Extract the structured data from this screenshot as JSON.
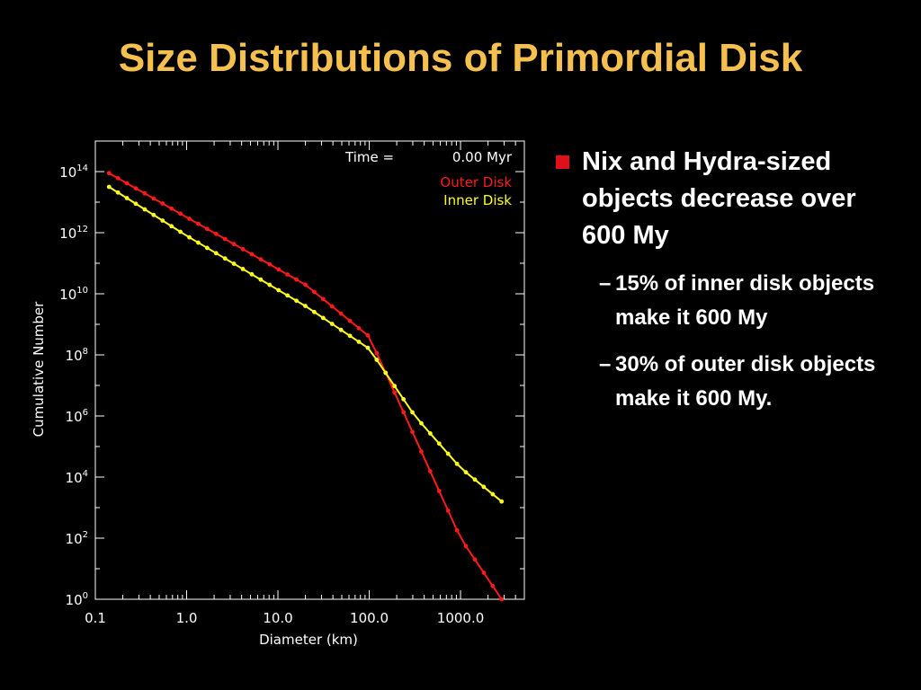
{
  "slide": {
    "title": "Size Distributions of Primordial Disk",
    "bullet": "Nix and Hydra-sized objects decrease over 600 My",
    "sub_bullets": [
      "15% of inner disk objects make it 600 My",
      "30% of outer disk objects make it 600 My."
    ],
    "sub_bullet_dash": "–"
  },
  "colors": {
    "title": "#f5c04d",
    "outer": "#ff1a1a",
    "inner": "#ffff1a",
    "bullet_square": "#e0101a"
  },
  "chart_data": {
    "type": "line",
    "xlabel": "Diameter (km)",
    "ylabel": "Cumulative Number",
    "xscale": "log",
    "yscale": "log",
    "xlim": [
      0.1,
      5000
    ],
    "ylim": [
      1,
      1000000000000000.0
    ],
    "x_tick_labels": [
      "0.1",
      "1.0",
      "10.0",
      "100.0",
      "1000.0"
    ],
    "y_tick_exponents": [
      "0",
      "2",
      "4",
      "6",
      "8",
      "10",
      "12",
      "14"
    ],
    "y_tick_base": "10",
    "annotation": {
      "label": "Time =",
      "value": "0.00 Myr"
    },
    "legend_position": "top-right",
    "series": [
      {
        "name": "Outer Disk",
        "color": "#ff1a1a",
        "log10_x_range": [
          -0.85,
          3.45
        ],
        "log10_y_points": [
          [
            -0.85,
            13.95
          ],
          [
            1.3,
            10.3
          ],
          [
            2.0,
            8.6
          ],
          [
            2.5,
            5.3
          ],
          [
            3.0,
            2.0
          ],
          [
            3.45,
            0.0
          ]
        ]
      },
      {
        "name": "Inner Disk",
        "color": "#ffff1a",
        "log10_x_range": [
          -0.85,
          3.45
        ],
        "log10_y_points": [
          [
            -0.85,
            13.5
          ],
          [
            0.0,
            11.9
          ],
          [
            1.3,
            9.6
          ],
          [
            2.0,
            8.2
          ],
          [
            2.5,
            6.0
          ],
          [
            3.0,
            4.3
          ],
          [
            3.45,
            3.2
          ]
        ]
      }
    ]
  }
}
